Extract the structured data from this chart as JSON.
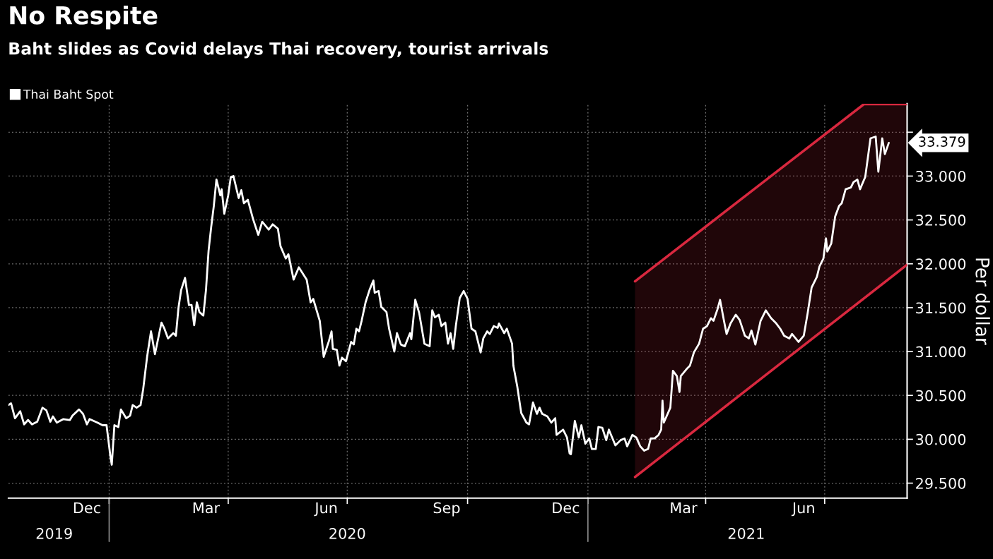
{
  "chart_data": {
    "type": "line",
    "title": "No Respite",
    "subtitle": "Baht slides as Covid delays Thai recovery, tourist arrivals",
    "ylabel": "Per dollar",
    "legend": "top left",
    "grid": true,
    "xlim": [
      "2019-10-16",
      "2021-09-02"
    ],
    "xticks": [
      {
        "value": "2019-12-15",
        "label": "Dec"
      },
      {
        "value": "2020-03-15",
        "label": "Mar"
      },
      {
        "value": "2020-06-15",
        "label": "Jun"
      },
      {
        "value": "2020-09-15",
        "label": "Sep"
      },
      {
        "value": "2020-12-15",
        "label": "Dec"
      },
      {
        "value": "2021-03-15",
        "label": "Mar"
      },
      {
        "value": "2021-06-15",
        "label": "Jun"
      },
      {
        "value": "2020-01-01",
        "label": null
      },
      {
        "value": "2020-04-01",
        "label": null
      },
      {
        "value": "2020-07-01",
        "label": null
      },
      {
        "value": "2020-10-01",
        "label": null
      },
      {
        "value": "2021-01-01",
        "label": null
      },
      {
        "value": "2021-04-01",
        "label": null
      },
      {
        "value": "2021-07-01",
        "label": null
      }
    ],
    "x2lim": [
      "2019-10-16",
      "2021-09-02"
    ],
    "x2ticks": [
      {
        "value": "2019-11-20",
        "label": "2019"
      },
      {
        "value": "2020-07-01",
        "label": "2020"
      },
      {
        "value": "2021-05-02",
        "label": "2021"
      },
      {
        "value": "2020-01-01",
        "label": null
      },
      {
        "value": "2021-01-01",
        "label": null
      }
    ],
    "ylim": [
      29.33,
      33.825
    ],
    "yticks": [
      {
        "value": 29.5,
        "label": "29.500"
      },
      {
        "value": 30.0,
        "label": "30.000"
      },
      {
        "value": 30.5,
        "label": "30.500"
      },
      {
        "value": 31.0,
        "label": "31.000"
      },
      {
        "value": 31.5,
        "label": "31.500"
      },
      {
        "value": 32.0,
        "label": "32.000"
      },
      {
        "value": 32.5,
        "label": "32.500"
      },
      {
        "value": 33.0,
        "label": "33.000"
      },
      {
        "value": 33.5,
        "label": null
      }
    ],
    "annotations": [
      {
        "text": "33.379",
        "x": "2021-08-19",
        "y": 33.379
      }
    ],
    "series": [
      {
        "name": "Thai Baht Spot",
        "color": "#ffffff",
        "x": [
          "2019-10-16",
          "2019-10-18",
          "2019-10-21",
          "2019-10-25",
          "2019-10-28",
          "2019-10-31",
          "2019-11-03",
          "2019-11-07",
          "2019-11-11",
          "2019-11-14",
          "2019-11-17",
          "2019-11-19",
          "2019-11-22",
          "2019-11-27",
          "2019-12-02",
          "2019-12-04",
          "2019-12-09",
          "2019-12-12",
          "2019-12-15",
          "2019-12-17",
          "2019-12-23",
          "2019-12-27",
          "2019-12-30",
          "2020-01-02",
          "2020-01-03",
          "2020-01-05",
          "2020-01-08",
          "2020-01-10",
          "2020-01-14",
          "2020-01-17",
          "2020-01-19",
          "2020-01-22",
          "2020-01-25",
          "2020-01-27",
          "2020-01-30",
          "2020-02-02",
          "2020-02-05",
          "2020-02-10",
          "2020-02-12",
          "2020-02-15",
          "2020-02-19",
          "2020-02-21",
          "2020-02-23",
          "2020-02-25",
          "2020-02-28",
          "2020-03-02",
          "2020-03-04",
          "2020-03-06",
          "2020-03-08",
          "2020-03-10",
          "2020-03-13",
          "2020-03-15",
          "2020-03-17",
          "2020-03-19",
          "2020-03-21",
          "2020-03-23",
          "2020-03-26",
          "2020-03-27",
          "2020-03-29",
          "2020-04-01",
          "2020-04-03",
          "2020-04-05",
          "2020-04-09",
          "2020-04-11",
          "2020-04-13",
          "2020-04-16",
          "2020-04-20",
          "2020-04-24",
          "2020-04-27",
          "2020-05-02",
          "2020-05-05",
          "2020-05-09",
          "2020-05-11",
          "2020-05-15",
          "2020-05-17",
          "2020-05-21",
          "2020-05-25",
          "2020-05-31",
          "2020-06-03",
          "2020-06-05",
          "2020-06-10",
          "2020-06-13",
          "2020-06-17",
          "2020-06-19",
          "2020-06-20",
          "2020-06-23",
          "2020-06-25",
          "2020-06-27",
          "2020-06-30",
          "2020-07-04",
          "2020-07-06",
          "2020-07-08",
          "2020-07-10",
          "2020-07-12",
          "2020-07-15",
          "2020-07-18",
          "2020-07-21",
          "2020-07-22",
          "2020-07-25",
          "2020-07-27",
          "2020-07-31",
          "2020-08-02",
          "2020-08-06",
          "2020-08-08",
          "2020-08-11",
          "2020-08-14",
          "2020-08-18",
          "2020-08-19",
          "2020-08-22",
          "2020-08-25",
          "2020-08-29",
          "2020-09-02",
          "2020-09-04",
          "2020-09-06",
          "2020-09-09",
          "2020-09-11",
          "2020-09-14",
          "2020-09-16",
          "2020-09-18",
          "2020-09-20",
          "2020-09-22",
          "2020-09-25",
          "2020-09-28",
          "2020-10-01",
          "2020-10-04",
          "2020-10-07",
          "2020-10-11",
          "2020-10-13",
          "2020-10-16",
          "2020-10-18",
          "2020-10-21",
          "2020-10-24",
          "2020-10-25",
          "2020-10-29",
          "2020-10-31",
          "2020-11-04",
          "2020-11-05",
          "2020-11-08",
          "2020-11-11",
          "2020-11-15",
          "2020-11-17",
          "2020-11-20",
          "2020-11-23",
          "2020-11-25",
          "2020-11-27",
          "2020-12-01",
          "2020-12-04",
          "2020-12-07",
          "2020-12-08",
          "2020-12-13",
          "2020-12-16",
          "2020-12-18",
          "2020-12-19",
          "2020-12-22",
          "2020-12-25",
          "2020-12-27",
          "2020-12-30",
          "2021-01-02",
          "2021-01-04",
          "2021-01-07",
          "2021-01-09",
          "2021-01-12",
          "2021-01-15",
          "2021-01-17",
          "2021-01-22",
          "2021-01-26",
          "2021-01-29",
          "2021-01-31",
          "2021-02-04",
          "2021-02-07",
          "2021-02-10",
          "2021-02-13",
          "2021-02-16",
          "2021-02-18",
          "2021-02-21",
          "2021-02-24",
          "2021-02-26",
          "2021-02-27",
          "2021-02-28",
          "2021-03-05",
          "2021-03-07",
          "2021-03-10",
          "2021-03-12",
          "2021-03-13",
          "2021-03-18",
          "2021-03-20",
          "2021-03-23",
          "2021-03-27",
          "2021-03-30",
          "2021-04-02",
          "2021-04-05",
          "2021-04-07",
          "2021-04-10",
          "2021-04-12",
          "2021-04-15",
          "2021-04-17",
          "2021-04-20",
          "2021-04-24",
          "2021-04-27",
          "2021-05-01",
          "2021-05-04",
          "2021-05-06",
          "2021-05-09",
          "2021-05-13",
          "2021-05-17",
          "2021-05-21",
          "2021-05-25",
          "2021-05-28",
          "2021-05-31",
          "2021-06-04",
          "2021-06-06",
          "2021-06-11",
          "2021-06-15",
          "2021-06-18",
          "2021-06-21",
          "2021-06-25",
          "2021-06-27",
          "2021-06-30",
          "2021-07-02",
          "2021-07-03",
          "2021-07-06",
          "2021-07-09",
          "2021-07-12",
          "2021-07-14",
          "2021-07-17",
          "2021-07-21",
          "2021-07-23",
          "2021-07-26",
          "2021-07-28",
          "2021-08-01",
          "2021-08-05",
          "2021-08-09",
          "2021-08-11",
          "2021-08-14",
          "2021-08-16",
          "2021-08-19"
        ],
        "values": [
          30.39,
          30.41,
          30.24,
          30.32,
          30.17,
          30.22,
          30.17,
          30.2,
          30.36,
          30.33,
          30.2,
          30.26,
          30.19,
          30.23,
          30.22,
          30.27,
          30.34,
          30.29,
          30.17,
          30.23,
          30.19,
          30.16,
          30.16,
          29.8,
          29.71,
          30.16,
          30.14,
          30.34,
          30.24,
          30.27,
          30.39,
          30.36,
          30.39,
          30.57,
          30.94,
          31.23,
          30.97,
          31.33,
          31.27,
          31.15,
          31.21,
          31.18,
          31.5,
          31.7,
          31.84,
          31.53,
          31.53,
          31.3,
          31.56,
          31.45,
          31.41,
          31.7,
          32.15,
          32.42,
          32.66,
          32.96,
          32.78,
          32.85,
          32.57,
          32.78,
          32.99,
          33.0,
          32.75,
          32.84,
          32.69,
          32.73,
          32.51,
          32.33,
          32.48,
          32.39,
          32.45,
          32.4,
          32.2,
          32.06,
          32.11,
          31.82,
          31.96,
          31.82,
          31.56,
          31.6,
          31.35,
          30.94,
          31.12,
          31.23,
          31.03,
          31.02,
          30.84,
          30.93,
          30.89,
          31.11,
          31.08,
          31.26,
          31.23,
          31.35,
          31.56,
          31.7,
          31.81,
          31.67,
          31.69,
          31.51,
          31.45,
          31.26,
          31.0,
          31.21,
          31.08,
          31.06,
          31.21,
          31.14,
          31.59,
          31.44,
          31.09,
          31.06,
          31.47,
          31.39,
          31.42,
          31.29,
          31.33,
          31.09,
          31.21,
          31.03,
          31.29,
          31.61,
          31.69,
          31.6,
          31.26,
          31.23,
          30.99,
          31.15,
          31.23,
          31.2,
          31.29,
          31.27,
          31.32,
          31.21,
          31.26,
          31.09,
          30.84,
          30.6,
          30.3,
          30.19,
          30.17,
          30.42,
          30.29,
          30.36,
          30.29,
          30.26,
          30.19,
          30.24,
          30.05,
          30.11,
          30.02,
          29.84,
          29.83,
          30.21,
          30.02,
          30.16,
          29.95,
          30.01,
          29.89,
          29.89,
          30.14,
          30.13,
          29.99,
          30.11,
          29.93,
          29.99,
          30.01,
          29.92,
          30.05,
          30.02,
          29.92,
          29.87,
          29.89,
          30.01,
          30.01,
          30.05,
          30.11,
          30.44,
          30.19,
          30.36,
          30.78,
          30.72,
          30.54,
          30.72,
          30.81,
          30.84,
          30.99,
          31.09,
          31.26,
          31.29,
          31.38,
          31.35,
          31.48,
          31.59,
          31.35,
          31.2,
          31.32,
          31.42,
          31.36,
          31.18,
          31.15,
          31.24,
          31.08,
          31.35,
          31.47,
          31.38,
          31.32,
          31.26,
          31.18,
          31.15,
          31.2,
          31.11,
          31.18,
          31.44,
          31.73,
          31.85,
          31.97,
          32.06,
          32.29,
          32.14,
          32.23,
          32.54,
          32.66,
          32.69,
          32.85,
          32.87,
          32.93,
          32.96,
          32.85,
          32.99,
          33.43,
          33.45,
          33.05,
          33.43,
          33.25,
          33.379
        ]
      },
      {
        "type": "line",
        "color": "#d9283f",
        "x": [
          "2021-02-06",
          "2021-07-31",
          "2021-09-02"
        ],
        "values": [
          31.8,
          33.82,
          33.82
        ],
        "lower": [
          29.57,
          31.59,
          31.99
        ],
        "upper": [
          31.8,
          33.82,
          33.82
        ]
      },
      {
        "type": "line",
        "color": "#d9283f",
        "x": [
          "2021-02-06",
          "2021-09-02"
        ],
        "values": [
          29.57,
          31.99
        ]
      }
    ]
  }
}
